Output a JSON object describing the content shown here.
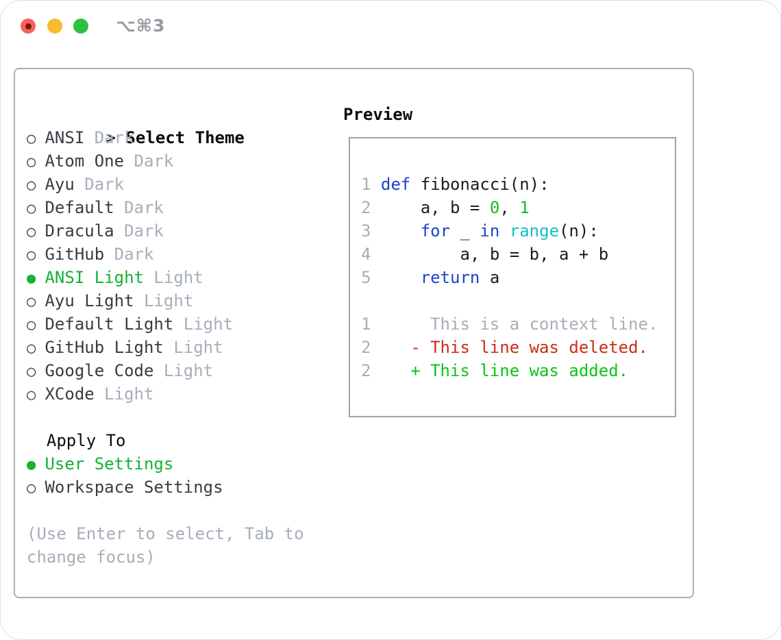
{
  "colors": {
    "text_strong": "#0c0d0e",
    "text_main": "#383c43",
    "text_muted": "#a6aeba",
    "green_sel": "#14b135",
    "green_add": "#0cc414",
    "green_lit": "#16bd1f",
    "blue_kw": "#1b43d2",
    "cyan_fn": "#13c0c6",
    "red_del": "#cb2d16",
    "code_plain": "#1c1c1c",
    "panel_border": "#a7afb9",
    "box_border": "#99a2ad",
    "traffic_red": "#f4615a",
    "traffic_red_dot": "#7c150b",
    "traffic_yellow": "#f8bc2e",
    "traffic_green": "#2ec13f",
    "shortcut_gray": "#94999f"
  },
  "titlebar": {
    "shortcut": "⌥⌘3"
  },
  "theme_selector": {
    "prompt": "> ",
    "title": "Select Theme",
    "radio_on": "●",
    "radio_off": "○",
    "items": [
      {
        "name": "ANSI",
        "variant": "Dark",
        "selected": false
      },
      {
        "name": "Atom One",
        "variant": "Dark",
        "selected": false
      },
      {
        "name": "Ayu",
        "variant": "Dark",
        "selected": false
      },
      {
        "name": "Default",
        "variant": "Dark",
        "selected": false
      },
      {
        "name": "Dracula",
        "variant": "Dark",
        "selected": false
      },
      {
        "name": "GitHub",
        "variant": "Dark",
        "selected": false
      },
      {
        "name": "ANSI Light",
        "variant": "Light",
        "selected": true
      },
      {
        "name": "Ayu Light",
        "variant": "Light",
        "selected": false
      },
      {
        "name": "Default Light",
        "variant": "Light",
        "selected": false
      },
      {
        "name": "GitHub Light",
        "variant": "Light",
        "selected": false
      },
      {
        "name": "Google Code",
        "variant": "Light",
        "selected": false
      },
      {
        "name": "XCode",
        "variant": "Light",
        "selected": false
      }
    ]
  },
  "apply_to": {
    "title": "Apply To",
    "options": [
      {
        "label": "User Settings",
        "selected": true
      },
      {
        "label": "Workspace Settings",
        "selected": false
      }
    ]
  },
  "help_text": "(Use Enter to select, Tab to change focus)",
  "preview": {
    "title": "Preview",
    "code_lines": [
      {
        "num": "1",
        "tokens": [
          {
            "text": "def",
            "style": "kw"
          },
          {
            "text": " fibonacci(n):",
            "style": "pl"
          }
        ]
      },
      {
        "num": "2",
        "tokens": [
          {
            "text": "    a, b = ",
            "style": "pl"
          },
          {
            "text": "0",
            "style": "lit"
          },
          {
            "text": ", ",
            "style": "pl"
          },
          {
            "text": "1",
            "style": "lit"
          }
        ]
      },
      {
        "num": "3",
        "tokens": [
          {
            "text": "    ",
            "style": "pl"
          },
          {
            "text": "for",
            "style": "kw"
          },
          {
            "text": " _ ",
            "style": "pl"
          },
          {
            "text": "in",
            "style": "kw"
          },
          {
            "text": " ",
            "style": "pl"
          },
          {
            "text": "range",
            "style": "fn"
          },
          {
            "text": "(n):",
            "style": "pl"
          }
        ]
      },
      {
        "num": "4",
        "tokens": [
          {
            "text": "        a, b = b, a + b",
            "style": "pl"
          }
        ]
      },
      {
        "num": "5",
        "tokens": [
          {
            "text": "    ",
            "style": "pl"
          },
          {
            "text": "return",
            "style": "kw"
          },
          {
            "text": " a",
            "style": "pl"
          }
        ]
      }
    ],
    "diff_lines": [
      {
        "num": "1",
        "mark": " ",
        "text": "This is a context line.",
        "kind": "ctx"
      },
      {
        "num": "2",
        "mark": "-",
        "text": "This line was deleted.",
        "kind": "del"
      },
      {
        "num": "2",
        "mark": "+",
        "text": "This line was added.",
        "kind": "add"
      }
    ]
  }
}
